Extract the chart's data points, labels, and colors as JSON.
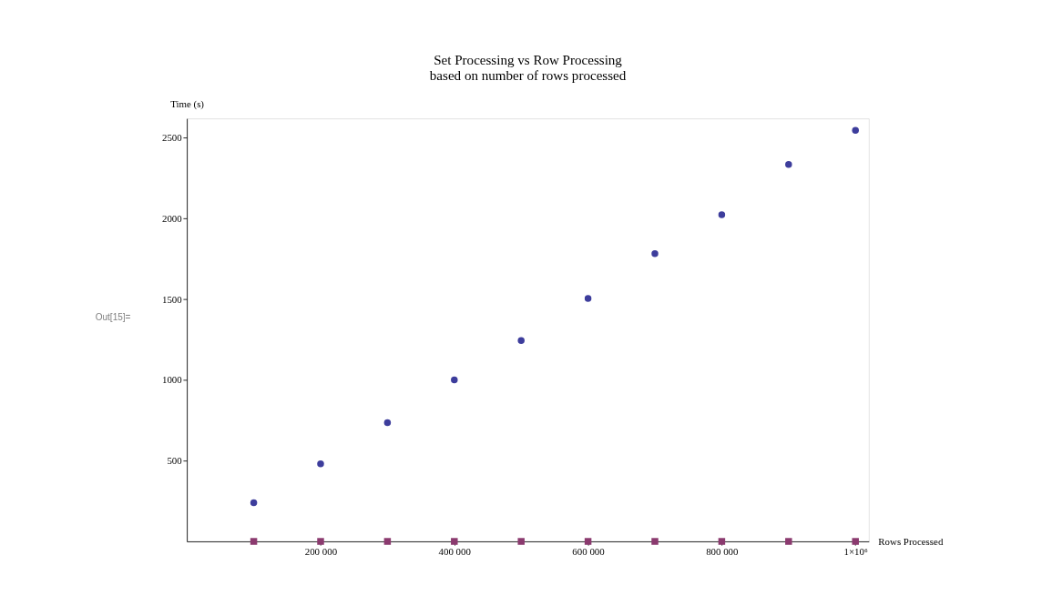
{
  "chart_data": {
    "type": "scatter",
    "title": "Set Processing vs Row Processing",
    "subtitle": "based on number of rows processed",
    "xlabel": "Rows Processed",
    "ylabel": "Time (s)",
    "annotations": [
      "Out[15]="
    ],
    "x": [
      100000,
      200000,
      300000,
      400000,
      500000,
      600000,
      700000,
      800000,
      900000,
      1000000
    ],
    "series": [
      {
        "color": "#3d3d9c",
        "marker": "circle",
        "values": [
          240,
          481,
          736,
          1000,
          1245,
          1505,
          1783,
          2024,
          2335,
          2547
        ]
      },
      {
        "color": "#8b3a6f",
        "marker": "square",
        "values": [
          0,
          0,
          0,
          0,
          0,
          0,
          0,
          0,
          0,
          0
        ]
      }
    ],
    "xlim": [
      0,
      1020000
    ],
    "ylim": [
      0,
      2620
    ],
    "xticks": [
      {
        "value": 200000,
        "label": "200 000"
      },
      {
        "value": 400000,
        "label": "400 000"
      },
      {
        "value": 600000,
        "label": "600 000"
      },
      {
        "value": 800000,
        "label": "800 000"
      },
      {
        "value": 1000000,
        "label": "1×10⁶"
      }
    ],
    "yticks": [
      500,
      1000,
      1500,
      2000,
      2500
    ],
    "grid": false
  }
}
